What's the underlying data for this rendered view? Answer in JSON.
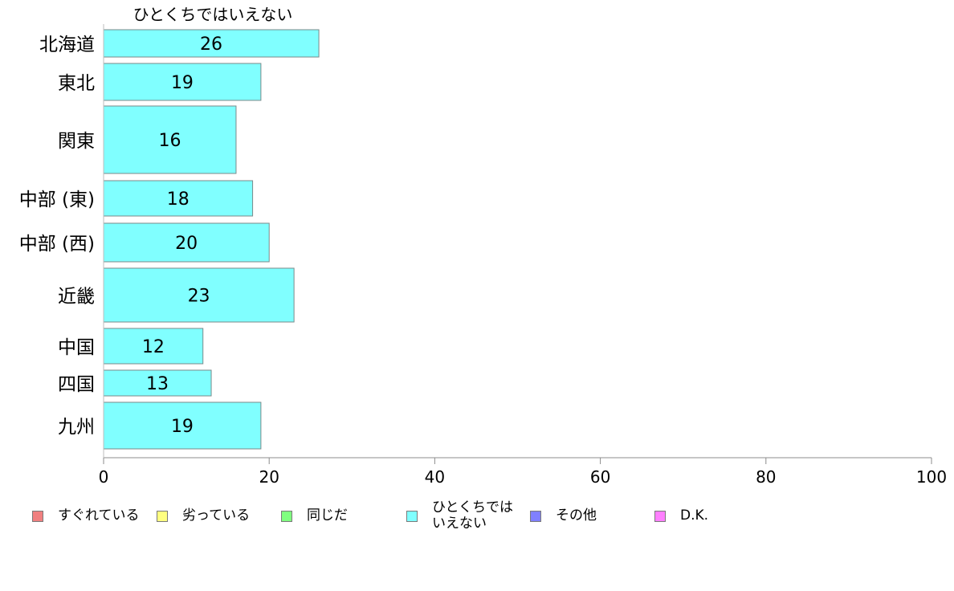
{
  "chart_data": {
    "type": "bar",
    "orientation": "horizontal",
    "title": "ひとくちではいえない",
    "categories": [
      "北海道",
      "東北",
      "関東",
      "中部 (東)",
      "中部 (西)",
      "近畿",
      "中国",
      "四国",
      "九州"
    ],
    "series": [
      {
        "name": "ひとくちではいえない",
        "color": "#80ffff",
        "values": [
          26,
          19,
          16,
          18,
          20,
          23,
          12,
          13,
          19
        ]
      }
    ],
    "xlim": [
      0,
      100
    ],
    "xticks": [
      0,
      20,
      40,
      60,
      80,
      100
    ],
    "grid": false,
    "legend_position": "bottom"
  },
  "legend": {
    "items": [
      {
        "label": "すぐれている",
        "color": "#f08080"
      },
      {
        "label": "劣っている",
        "color": "#ffff80"
      },
      {
        "label": "同じだ",
        "color": "#80ff80"
      },
      {
        "label": "ひとくちでは\nいえない",
        "color": "#80ffff"
      },
      {
        "label": "その他",
        "color": "#8080ff"
      },
      {
        "label": "D.K.",
        "color": "#ff80ff"
      }
    ]
  }
}
